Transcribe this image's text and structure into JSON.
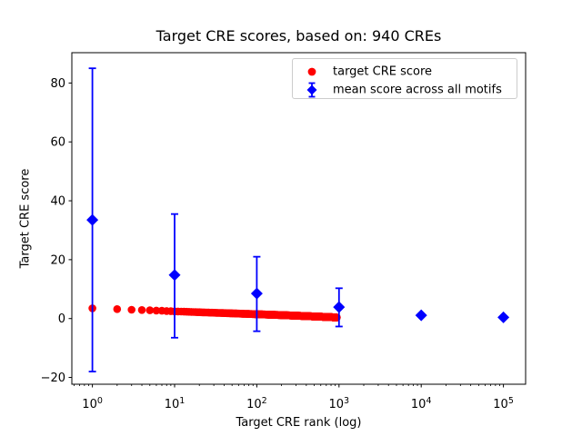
{
  "chart_data": {
    "type": "scatter",
    "title": "Target CRE scores, based on: 940 CREs",
    "xlabel": "Target CRE rank (log)",
    "ylabel": "Target CRE score",
    "x_scale": "log",
    "xlim_log10": [
      -0.25,
      5.27
    ],
    "ylim": [
      -22.3,
      90.3
    ],
    "grid": false,
    "colors": {
      "target": "#ff0000",
      "mean": "#0000ff",
      "axis": "#000000",
      "legend_border": "#cccccc"
    },
    "xticks": [
      {
        "log": 0,
        "base": "10",
        "exp": "0"
      },
      {
        "log": 1,
        "base": "10",
        "exp": "1"
      },
      {
        "log": 2,
        "base": "10",
        "exp": "2"
      },
      {
        "log": 3,
        "base": "10",
        "exp": "3"
      },
      {
        "log": 4,
        "base": "10",
        "exp": "4"
      },
      {
        "log": 5,
        "base": "10",
        "exp": "5"
      }
    ],
    "yticks": [
      {
        "value": -20,
        "label": "−20"
      },
      {
        "value": 0,
        "label": "0"
      },
      {
        "value": 20,
        "label": "20"
      },
      {
        "value": 40,
        "label": "40"
      },
      {
        "value": 60,
        "label": "60"
      },
      {
        "value": 80,
        "label": "80"
      }
    ],
    "series": [
      {
        "name": "target CRE score",
        "marker": "circle",
        "color": "#ff0000",
        "n_points": 940,
        "note": "940 points at ranks 1..940; scores decline ~linearly in log10(rank); anchors below, log-interpolated",
        "anchors": [
          {
            "rank": 1,
            "score": 3.5
          },
          {
            "rank": 2,
            "score": 3.2
          },
          {
            "rank": 3,
            "score": 3.0
          },
          {
            "rank": 4,
            "score": 2.9
          },
          {
            "rank": 5,
            "score": 2.8
          },
          {
            "rank": 7,
            "score": 2.65
          },
          {
            "rank": 10,
            "score": 2.45
          },
          {
            "rank": 15,
            "score": 2.28
          },
          {
            "rank": 20,
            "score": 2.15
          },
          {
            "rank": 30,
            "score": 1.98
          },
          {
            "rank": 50,
            "score": 1.78
          },
          {
            "rank": 70,
            "score": 1.62
          },
          {
            "rank": 100,
            "score": 1.48
          },
          {
            "rank": 150,
            "score": 1.3
          },
          {
            "rank": 200,
            "score": 1.18
          },
          {
            "rank": 300,
            "score": 0.98
          },
          {
            "rank": 500,
            "score": 0.72
          },
          {
            "rank": 700,
            "score": 0.55
          },
          {
            "rank": 940,
            "score": 0.38
          }
        ]
      },
      {
        "name": "mean score across all motifs",
        "marker": "diamond",
        "color": "#0000ff",
        "points": [
          {
            "x": 1,
            "y": 33.5,
            "err_lo": -18.0,
            "err_hi": 85.0
          },
          {
            "x": 10,
            "y": 14.8,
            "err_lo": -6.5,
            "err_hi": 35.5
          },
          {
            "x": 100,
            "y": 8.5,
            "err_lo": -4.3,
            "err_hi": 21.0
          },
          {
            "x": 1000,
            "y": 3.9,
            "err_lo": -2.7,
            "err_hi": 10.3
          },
          {
            "x": 10000,
            "y": 1.1,
            "err_lo": 1.1,
            "err_hi": 1.1
          },
          {
            "x": 100000,
            "y": 0.4,
            "err_lo": 0.4,
            "err_hi": 0.4
          }
        ]
      }
    ],
    "legend": {
      "position": "upper right"
    }
  }
}
